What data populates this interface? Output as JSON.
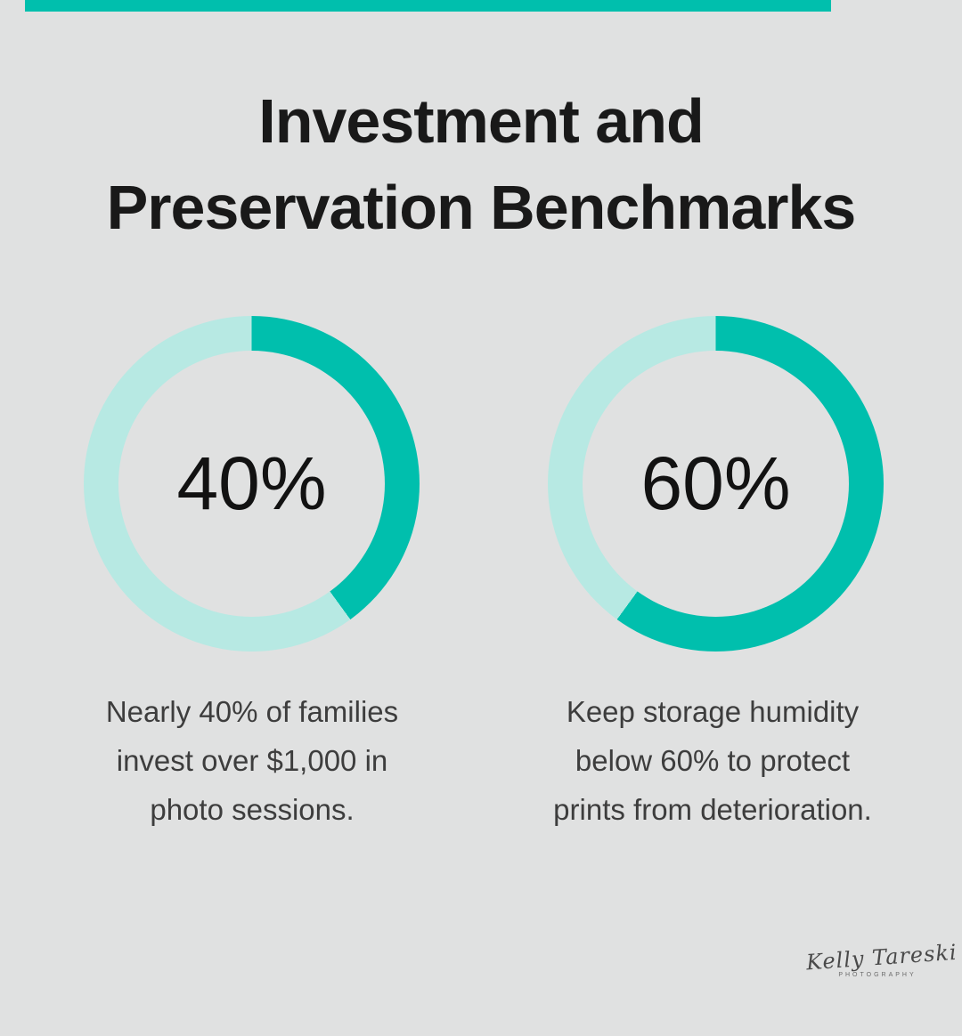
{
  "page": {
    "background_color": "#E0E1E1",
    "accent_color": "#00BFAD"
  },
  "title": {
    "text": "Investment and Preservation Benchmarks",
    "lines": [
      "Investment and",
      "Preservation Benchmarks"
    ]
  },
  "chart_data": [
    {
      "type": "pie",
      "variant": "donut",
      "value_percent": 40,
      "center_label": "40%",
      "segments": [
        {
          "name": "filled",
          "value": 40,
          "color": "#00BFAD"
        },
        {
          "name": "remainder",
          "value": 60,
          "color": "#B7E9E3"
        }
      ],
      "start_angle_deg": 0,
      "direction": "clockwise",
      "caption": "Nearly 40% of families invest over $1,000 in photo sessions.",
      "caption_lines": [
        "Nearly 40% of families",
        "invest over $1,000 in",
        "photo sessions."
      ]
    },
    {
      "type": "pie",
      "variant": "donut",
      "value_percent": 60,
      "center_label": "60%",
      "segments": [
        {
          "name": "filled",
          "value": 60,
          "color": "#00BFAD"
        },
        {
          "name": "remainder",
          "value": 40,
          "color": "#B7E9E3"
        }
      ],
      "start_angle_deg": 0,
      "direction": "clockwise",
      "caption": "Keep storage humidity below 60% to protect prints from deterioration.",
      "caption_lines": [
        "Keep storage humidity",
        "below 60% to protect",
        "prints from deterioration."
      ]
    }
  ],
  "footer": {
    "signature_name": "Kelly Tareski",
    "signature_subtitle": "PHOTOGRAPHY"
  }
}
